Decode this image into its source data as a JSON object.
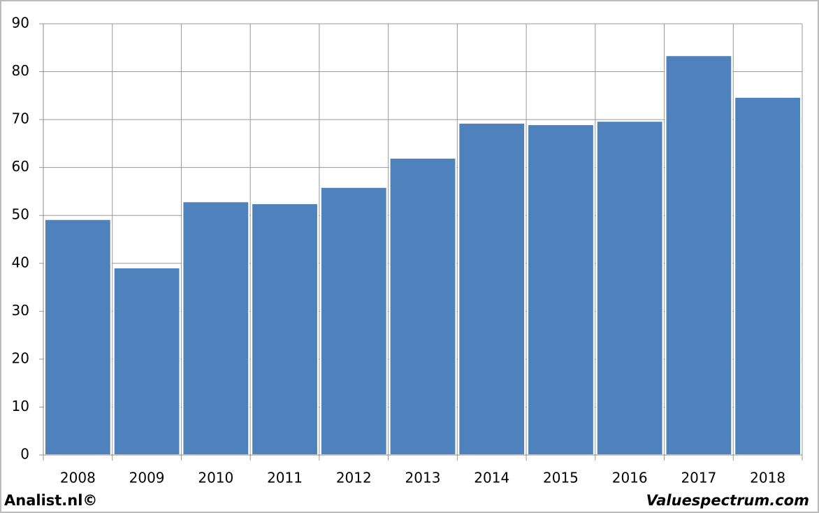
{
  "chart_data": {
    "type": "bar",
    "categories": [
      "2008",
      "2009",
      "2010",
      "2011",
      "2012",
      "2013",
      "2014",
      "2015",
      "2016",
      "2017",
      "2018"
    ],
    "values": [
      49.2,
      39.1,
      52.9,
      52.5,
      55.9,
      62.0,
      69.3,
      69.0,
      69.7,
      83.4,
      74.7
    ],
    "color": "#4f81bd",
    "ylim": [
      0,
      90
    ],
    "yticks": [
      0,
      10,
      20,
      30,
      40,
      50,
      60,
      70,
      80,
      90
    ],
    "grid": true
  },
  "footer": {
    "left": "Analist.nl©",
    "right": "Valuespectrum.com"
  }
}
